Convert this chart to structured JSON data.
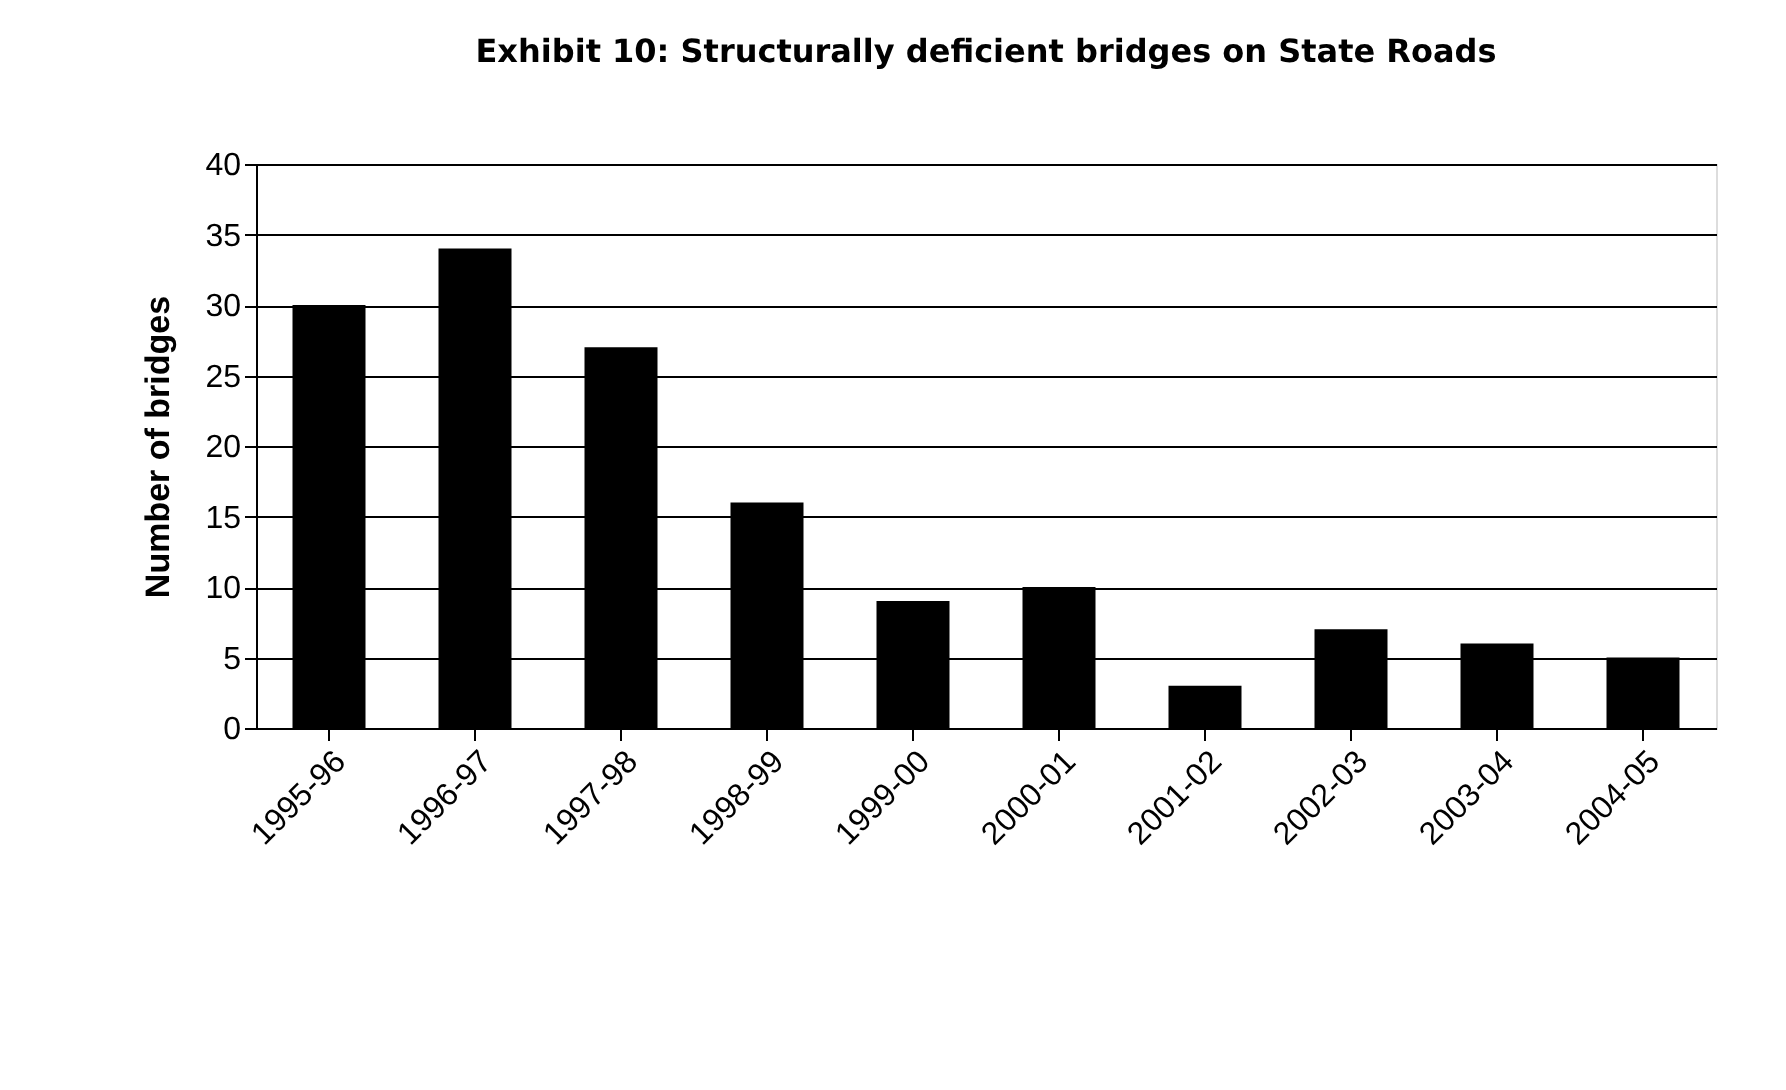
{
  "chart_data": {
    "type": "bar",
    "title": "Exhibit 10:  Structurally deficient bridges on State Roads",
    "ylabel": "Number of bridges",
    "categories": [
      "1995-96",
      "1996-97",
      "1997-98",
      "1998-99",
      "1999-00",
      "2000-01",
      "2001-02",
      "2002-03",
      "2003-04",
      "2004-05"
    ],
    "values": [
      30,
      34,
      27,
      16,
      9,
      10,
      3,
      7,
      6,
      5
    ],
    "color": "#000000",
    "ylim": [
      0,
      40
    ],
    "yticks": [
      0,
      5,
      10,
      15,
      20,
      25,
      30,
      35,
      40
    ],
    "grid": "y"
  }
}
